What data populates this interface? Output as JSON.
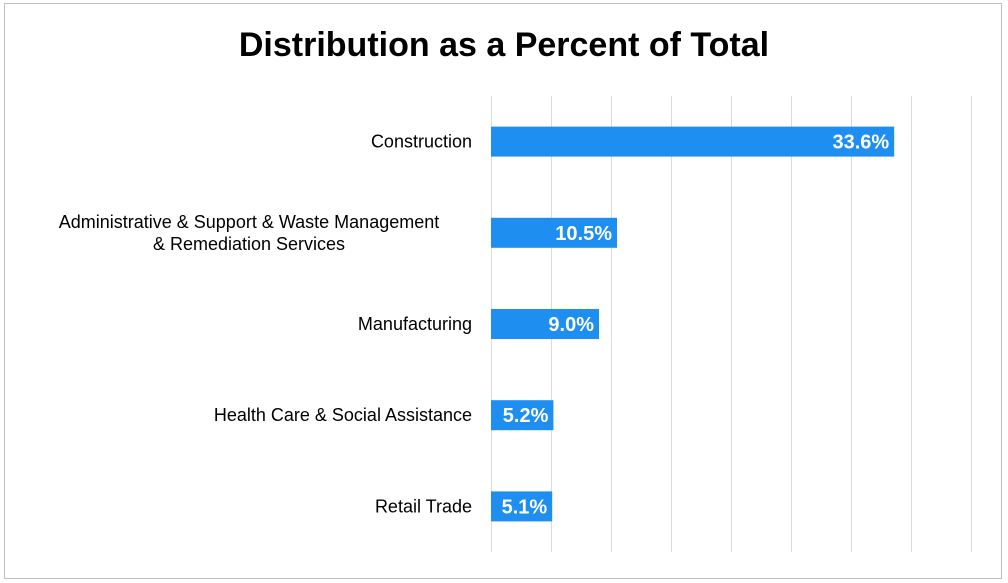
{
  "chart_data": {
    "type": "bar",
    "orientation": "horizontal",
    "title": "Distribution as a Percent of Total",
    "categories": [
      [
        "Construction"
      ],
      [
        "Administrative & Support & Waste Management",
        "& Remediation Services"
      ],
      [
        "Manufacturing"
      ],
      [
        "Health Care & Social Assistance"
      ],
      [
        "Retail Trade"
      ]
    ],
    "values": [
      33.6,
      10.5,
      9.0,
      5.2,
      5.1
    ],
    "value_labels": [
      "33.6%",
      "10.5%",
      "9.0%",
      "5.2%",
      "5.1%"
    ],
    "xlim": [
      0,
      40
    ],
    "x_gridline_step": 5,
    "grid": true,
    "tick_labels_shown": false,
    "bar_color": "#1f8ef1",
    "gridline_color": "#d9d9d9"
  }
}
